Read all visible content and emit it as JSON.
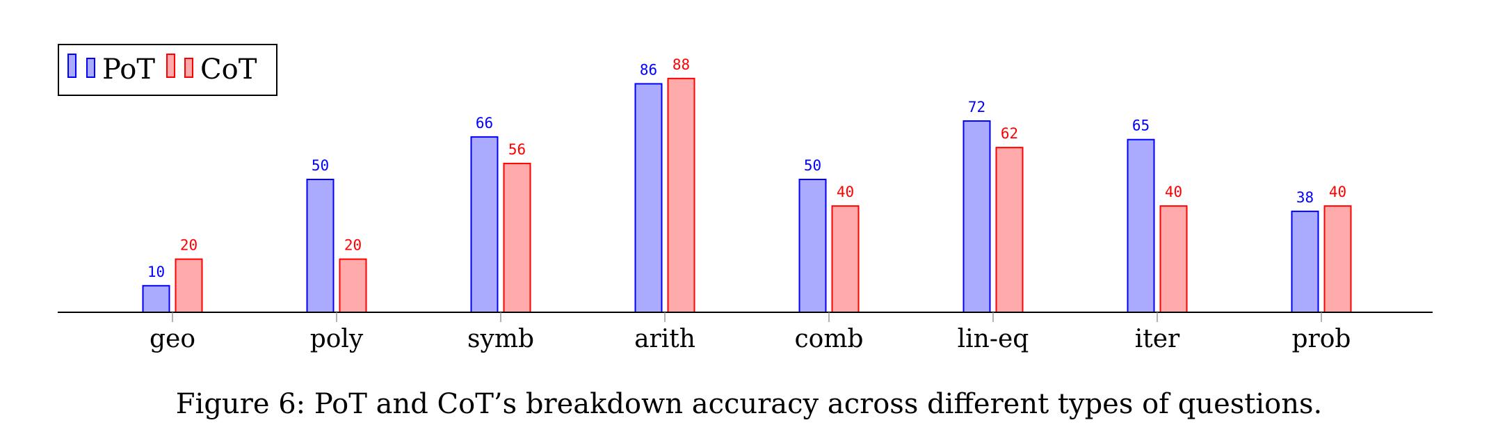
{
  "caption": "Figure 6: PoT and CoT’s breakdown accuracy across different types of questions.",
  "chart_data": {
    "type": "bar",
    "categories": [
      "geo",
      "poly",
      "symb",
      "arith",
      "comb",
      "lin-eq",
      "iter",
      "prob"
    ],
    "series": [
      {
        "name": "PoT",
        "values": [
          10,
          50,
          66,
          86,
          50,
          72,
          65,
          38
        ],
        "fill": "#aaaaff",
        "stroke": "#0000ff"
      },
      {
        "name": "CoT",
        "values": [
          20,
          20,
          56,
          88,
          40,
          62,
          40,
          40
        ],
        "fill": "#ffaaaa",
        "stroke": "#ff0000"
      }
    ],
    "ylim": [
      0,
      100
    ],
    "legend": "top-left",
    "grid": false,
    "xlabel": "",
    "ylabel": ""
  }
}
